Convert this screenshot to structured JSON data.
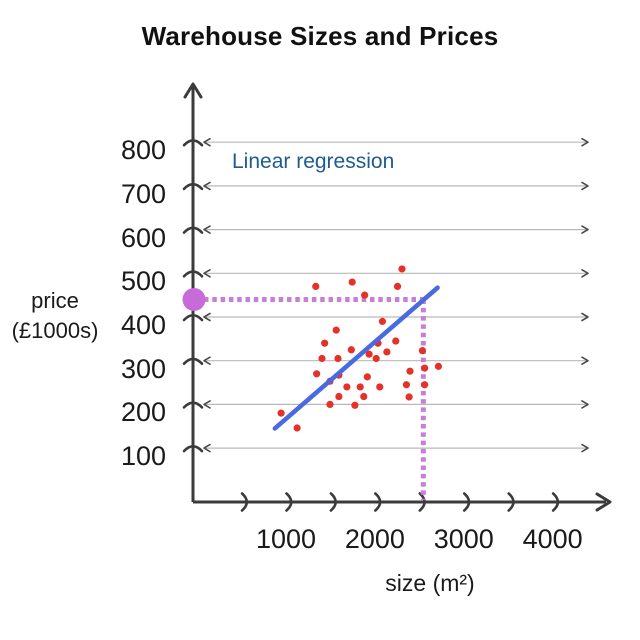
{
  "chart_data": {
    "type": "scatter",
    "title": "Warehouse Sizes and Prices",
    "xlabel": "size (m²)",
    "ylabel": "price (£1000s)",
    "ylabel_lines": [
      "price",
      "(£1000s)"
    ],
    "annotation": "Linear regression",
    "x_tick_labels": [
      1000,
      2000,
      3000,
      4000
    ],
    "x_ticks_all": [
      500,
      1000,
      1500,
      2000,
      2500,
      3000,
      3500,
      4000
    ],
    "y_ticks": [
      100,
      200,
      300,
      400,
      500,
      600,
      700,
      800
    ],
    "xlim": [
      0,
      4400
    ],
    "ylim": [
      0,
      880
    ],
    "grid": "horizontal",
    "points": [
      [
        2260,
        510
      ],
      [
        1700,
        480
      ],
      [
        1290,
        470
      ],
      [
        2210,
        470
      ],
      [
        1840,
        450
      ],
      [
        2040,
        390
      ],
      [
        1520,
        370
      ],
      [
        1390,
        340
      ],
      [
        1990,
        340
      ],
      [
        2190,
        345
      ],
      [
        1690,
        325
      ],
      [
        1890,
        315
      ],
      [
        1360,
        305
      ],
      [
        1540,
        305
      ],
      [
        2090,
        320
      ],
      [
        1970,
        305
      ],
      [
        2490,
        323
      ],
      [
        2670,
        287
      ],
      [
        2350,
        276
      ],
      [
        2515,
        283
      ],
      [
        1300,
        270
      ],
      [
        1550,
        267
      ],
      [
        1870,
        263
      ],
      [
        1450,
        253
      ],
      [
        1640,
        240
      ],
      [
        1790,
        240
      ],
      [
        2010,
        240
      ],
      [
        2310,
        245
      ],
      [
        2515,
        245
      ],
      [
        1550,
        218
      ],
      [
        1830,
        218
      ],
      [
        2340,
        217
      ],
      [
        1450,
        200
      ],
      [
        1730,
        198
      ],
      [
        900,
        180
      ],
      [
        1080,
        146
      ]
    ],
    "regression_line": {
      "x1": 830,
      "y1": 145,
      "x2": 2660,
      "y2": 467
    },
    "prediction": {
      "size": 2500,
      "price": 440
    },
    "colors": {
      "points": "#e43228",
      "line": "#4a6ae0",
      "prediction_dot": "#c76bd8",
      "prediction_dash": "#c77ed6",
      "annotation": "#1e5c90",
      "axis": "#3b3b3b",
      "grid": "#b9b9b9",
      "grid_tip": "#4a4a4a",
      "text": "#1a1a1a"
    }
  }
}
